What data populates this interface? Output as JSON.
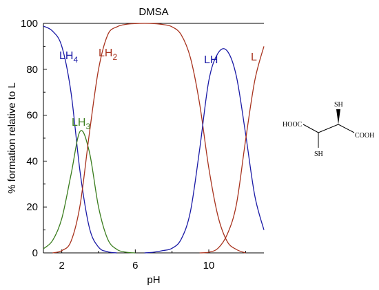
{
  "chart_data": {
    "type": "line",
    "title": "DMSA",
    "xlabel": "pH",
    "ylabel": "% formation relative to L",
    "xlim": [
      1,
      13
    ],
    "ylim": [
      0,
      100
    ],
    "xticks": [
      2,
      6,
      10
    ],
    "yticks": [
      0,
      20,
      40,
      60,
      80,
      100
    ],
    "grid": false,
    "series": [
      {
        "name": "LH4",
        "name_main": "LH",
        "name_sub": "4",
        "color": "#1a1aa6",
        "x": [
          1,
          1.5,
          2,
          2.5,
          3,
          3.5,
          4,
          4.5,
          5
        ],
        "y": [
          98.8,
          96.6,
          90,
          70,
          35,
          11,
          2.5,
          0.5,
          0
        ]
      },
      {
        "name": "LH3",
        "name_main": "LH",
        "name_sub": "3",
        "color": "#3a7d1e",
        "x": [
          1,
          1.5,
          2,
          2.5,
          3,
          3.5,
          4,
          4.5,
          5,
          5.5,
          6
        ],
        "y": [
          1.8,
          5.4,
          15,
          34,
          53,
          44,
          20,
          6,
          1.5,
          0.3,
          0
        ]
      },
      {
        "name": "LH2",
        "name_main": "LH",
        "name_sub": "2",
        "color": "#a8331e",
        "x": [
          1.5,
          2,
          2.5,
          3,
          3.5,
          4,
          4.5,
          5,
          5.5,
          6,
          6.5,
          7,
          7.5,
          8,
          8.5,
          9,
          9.5,
          10,
          10.5,
          11,
          11.5,
          12
        ],
        "y": [
          0,
          1,
          5,
          21,
          52,
          80,
          95,
          98.5,
          99.6,
          99.9,
          100,
          99.9,
          99.5,
          98.5,
          95,
          85,
          65,
          37,
          16,
          5,
          1.5,
          0
        ]
      },
      {
        "name": "LH",
        "name_main": "LH",
        "name_sub": "",
        "color": "#1a1aa6",
        "x": [
          6.5,
          7,
          7.5,
          8,
          8.5,
          9,
          9.5,
          10,
          10.5,
          11,
          11.5,
          12,
          12.5,
          13
        ],
        "y": [
          0,
          0.3,
          1,
          2,
          6,
          18,
          45,
          75,
          87,
          88,
          77,
          52,
          25,
          10
        ]
      },
      {
        "name": "L",
        "name_main": "L",
        "name_sub": "",
        "color": "#a8331e",
        "x": [
          9.5,
          10,
          10.5,
          11,
          11.5,
          12,
          12.5,
          13
        ],
        "y": [
          0,
          0.3,
          2,
          8,
          21,
          49,
          75,
          90
        ]
      }
    ]
  },
  "structure": {
    "label_hooc": "HOOC",
    "label_cooh": "COOH",
    "label_sh_top": "SH",
    "label_sh_bottom": "SH"
  }
}
